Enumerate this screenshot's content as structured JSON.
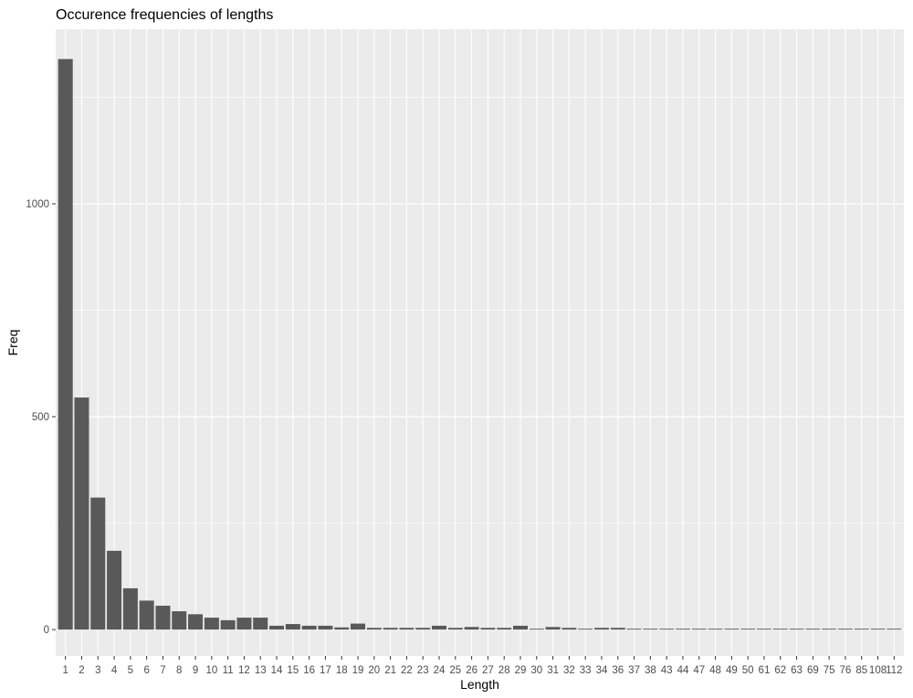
{
  "chart_data": {
    "type": "bar",
    "title": "Occurence frequencies of lengths",
    "xlabel": "Length",
    "ylabel": "Freq",
    "categories": [
      "1",
      "2",
      "3",
      "4",
      "5",
      "6",
      "7",
      "8",
      "9",
      "10",
      "11",
      "12",
      "13",
      "14",
      "15",
      "16",
      "17",
      "18",
      "19",
      "20",
      "21",
      "22",
      "23",
      "24",
      "25",
      "26",
      "27",
      "28",
      "29",
      "30",
      "31",
      "32",
      "33",
      "34",
      "36",
      "37",
      "38",
      "43",
      "44",
      "47",
      "48",
      "49",
      "50",
      "61",
      "62",
      "63",
      "69",
      "75",
      "76",
      "85",
      "108",
      "112"
    ],
    "values": [
      1340,
      545,
      310,
      185,
      97,
      68,
      56,
      43,
      36,
      28,
      22,
      28,
      28,
      9,
      13,
      9,
      9,
      5,
      14,
      4,
      4,
      4,
      4,
      9,
      4,
      6,
      4,
      4,
      9,
      2,
      6,
      4,
      2,
      4,
      4,
      2,
      2,
      2,
      2,
      2,
      2,
      2,
      2,
      2,
      2,
      2,
      2,
      2,
      2,
      2,
      2,
      2
    ],
    "ylim": [
      -62,
      1410
    ],
    "yticks": [
      0,
      500,
      1000
    ],
    "grid": true,
    "legend": "none",
    "colors": {
      "panel": "#ebebeb",
      "grid": "#ffffff",
      "bar": "#595959",
      "tick_text": "#4d4d4d",
      "tick_mark": "#333333"
    }
  }
}
